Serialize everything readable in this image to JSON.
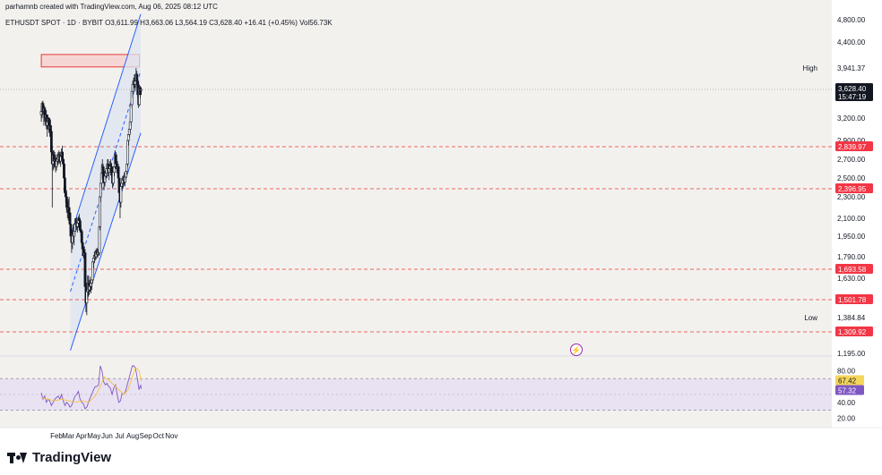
{
  "header": {
    "credit": "parhamnb created with TradingView.com, Aug 06, 2025 08:12 UTC",
    "symbol": "ETHUSDT SPOT · 1D · BYBIT",
    "open": "O3,611.99",
    "high": "H3,663.06",
    "low": "L3,564.19",
    "close": "C3,628.40",
    "change": "+16.41 (+0.45%)",
    "volume": "Vol56.73K"
  },
  "footer": {
    "brand": "TradingView"
  },
  "colors": {
    "background": "#f3f1ee",
    "channel_fill": "#dde4f0",
    "channel_line": "#2962ff",
    "resistance_zone": "#f5cccc",
    "resistance_border": "#e53935",
    "level_line": "#e53935",
    "label_red": "#f23645",
    "candle": "#131722",
    "rsi_line": "#7e57c2",
    "rsi_ma": "#f5c242",
    "rsi_label_yellow": "#f5d65b",
    "rsi_label_purple": "#7e57c2"
  },
  "chart_data": {
    "type": "candlestick",
    "symbol": "ETHUSDT",
    "timeframe": "1D",
    "x_ticks": [
      "Feb",
      "Mar",
      "Apr",
      "May",
      "Jun",
      "Jul",
      "Aug",
      "Sep",
      "Oct",
      "Nov"
    ],
    "price_axis_ticks": [
      "4,800.00",
      "4,400.00",
      "3,200.00",
      "2,900.00",
      "2,700.00",
      "2,500.00",
      "2,300.00",
      "2,100.00",
      "1,950.00",
      "1,790.00",
      "1,630.00",
      "1,384.84",
      "1,195.00"
    ],
    "price_ylim": [
      1150,
      5000
    ],
    "current_price": {
      "value": 3628.4,
      "label": "3,628.40",
      "countdown": "15:47:19"
    },
    "high": {
      "value": 3941.37,
      "label": "3,941.37",
      "tag": "High"
    },
    "low": {
      "value": 1384.84,
      "label": "1,384.84",
      "tag": "Low"
    },
    "levels": [
      {
        "value": 2839.97,
        "label": "2,839.97"
      },
      {
        "value": 2396.95,
        "label": "2,396.95"
      },
      {
        "value": 1693.58,
        "label": "1,693.58"
      },
      {
        "value": 1501.78,
        "label": "1,501.78"
      },
      {
        "value": 1309.92,
        "label": "1,309.92"
      }
    ],
    "resistance_zone": {
      "low": 3960,
      "high": 4180,
      "from_day": -36,
      "to_day": 197
    },
    "channel": {
      "from_day": 33,
      "to_day": 200,
      "upper": [
        1950,
        4900
      ],
      "middle": [
        1550,
        3900
      ],
      "lower": [
        1210,
        3000
      ]
    },
    "candles": [
      [
        -36,
        3250,
        3370,
        3150,
        3300
      ],
      [
        -34,
        3300,
        3450,
        3200,
        3420
      ],
      [
        -32,
        3420,
        3460,
        3250,
        3300
      ],
      [
        -30,
        3300,
        3400,
        3100,
        3350
      ],
      [
        -28,
        3350,
        3380,
        3150,
        3200
      ],
      [
        -26,
        3200,
        3300,
        3100,
        3250
      ],
      [
        -24,
        3250,
        3320,
        3050,
        3100
      ],
      [
        -22,
        3100,
        3200,
        2950,
        3150
      ],
      [
        -20,
        3150,
        3250,
        3050,
        3200
      ],
      [
        -18,
        3200,
        3210,
        3000,
        3050
      ],
      [
        -16,
        3050,
        3150,
        2950,
        3100
      ],
      [
        -14,
        3100,
        3180,
        2980,
        3020
      ],
      [
        -12,
        3020,
        3050,
        2700,
        2780
      ],
      [
        -10,
        2780,
        2850,
        2200,
        2650
      ],
      [
        -8,
        2650,
        2800,
        2580,
        2750
      ],
      [
        -6,
        2750,
        2800,
        2600,
        2680
      ],
      [
        -4,
        2680,
        2780,
        2620,
        2700
      ],
      [
        -2,
        2700,
        2750,
        2560,
        2620
      ],
      [
        0,
        2620,
        2720,
        2580,
        2680
      ],
      [
        2,
        2680,
        2760,
        2620,
        2700
      ],
      [
        4,
        2700,
        2780,
        2640,
        2720
      ],
      [
        6,
        2720,
        2800,
        2660,
        2750
      ],
      [
        8,
        2750,
        2780,
        2650,
        2680
      ],
      [
        10,
        2680,
        2760,
        2620,
        2730
      ],
      [
        12,
        2730,
        2820,
        2680,
        2780
      ],
      [
        14,
        2780,
        2850,
        2680,
        2700
      ],
      [
        16,
        2700,
        2780,
        2600,
        2650
      ],
      [
        18,
        2650,
        2700,
        2450,
        2500
      ],
      [
        20,
        2500,
        2550,
        2300,
        2350
      ],
      [
        22,
        2350,
        2420,
        2200,
        2300
      ],
      [
        24,
        2300,
        2380,
        2150,
        2250
      ],
      [
        26,
        2250,
        2300,
        2100,
        2180
      ],
      [
        28,
        2180,
        2280,
        2080,
        2200
      ],
      [
        30,
        2200,
        2300,
        2100,
        2150
      ],
      [
        32,
        2150,
        2200,
        2000,
        2050
      ],
      [
        34,
        2050,
        2100,
        1920,
        1950
      ],
      [
        36,
        1950,
        2000,
        1820,
        1900
      ],
      [
        38,
        1900,
        2000,
        1850,
        1970
      ],
      [
        40,
        1970,
        2050,
        1900,
        1950
      ],
      [
        42,
        1950,
        2020,
        1880,
        1990
      ],
      [
        44,
        1990,
        2100,
        1960,
        2050
      ],
      [
        46,
        2050,
        2100,
        1990,
        2070
      ],
      [
        48,
        2070,
        2110,
        2000,
        2030
      ],
      [
        50,
        2030,
        2090,
        1980,
        2060
      ],
      [
        52,
        2060,
        2120,
        2020,
        2100
      ],
      [
        54,
        2100,
        2140,
        2050,
        2080
      ],
      [
        56,
        2080,
        2100,
        1980,
        2000
      ],
      [
        58,
        2000,
        2050,
        1950,
        1990
      ],
      [
        60,
        1990,
        2010,
        1880,
        1900
      ],
      [
        62,
        1900,
        1950,
        1820,
        1850
      ],
      [
        64,
        1850,
        1900,
        1780,
        1800
      ],
      [
        66,
        1800,
        1870,
        1760,
        1820
      ],
      [
        68,
        1820,
        1850,
        1550,
        1580
      ],
      [
        70,
        1580,
        1700,
        1420,
        1480
      ],
      [
        72,
        1480,
        1600,
        1400,
        1550
      ],
      [
        74,
        1550,
        1650,
        1500,
        1600
      ],
      [
        76,
        1600,
        1650,
        1520,
        1560
      ],
      [
        78,
        1560,
        1620,
        1530,
        1590
      ],
      [
        80,
        1590,
        1640,
        1550,
        1580
      ],
      [
        82,
        1580,
        1620,
        1540,
        1600
      ],
      [
        84,
        1600,
        1650,
        1560,
        1620
      ],
      [
        86,
        1620,
        1780,
        1600,
        1750
      ],
      [
        88,
        1750,
        1800,
        1700,
        1780
      ],
      [
        90,
        1780,
        1830,
        1740,
        1800
      ],
      [
        92,
        1800,
        1840,
        1760,
        1790
      ],
      [
        94,
        1790,
        1850,
        1770,
        1830
      ],
      [
        96,
        1830,
        1860,
        1790,
        1810
      ],
      [
        98,
        1810,
        1850,
        1780,
        1840
      ],
      [
        100,
        1840,
        1870,
        1800,
        1820
      ],
      [
        102,
        1820,
        2050,
        1800,
        2030
      ],
      [
        103,
        2030,
        2350,
        2000,
        2300
      ],
      [
        105,
        2300,
        2500,
        2250,
        2450
      ],
      [
        107,
        2450,
        2650,
        2400,
        2550
      ],
      [
        109,
        2550,
        2700,
        2480,
        2620
      ],
      [
        111,
        2620,
        2650,
        2450,
        2500
      ],
      [
        113,
        2500,
        2560,
        2380,
        2460
      ],
      [
        115,
        2460,
        2580,
        2420,
        2520
      ],
      [
        117,
        2520,
        2600,
        2480,
        2550
      ],
      [
        119,
        2550,
        2640,
        2500,
        2600
      ],
      [
        121,
        2600,
        2700,
        2550,
        2650
      ],
      [
        123,
        2650,
        2700,
        2520,
        2560
      ],
      [
        125,
        2560,
        2620,
        2480,
        2600
      ],
      [
        127,
        2600,
        2680,
        2560,
        2640
      ],
      [
        129,
        2640,
        2700,
        2580,
        2620
      ],
      [
        131,
        2620,
        2660,
        2500,
        2530
      ],
      [
        133,
        2530,
        2580,
        2400,
        2450
      ],
      [
        135,
        2450,
        2600,
        2420,
        2560
      ],
      [
        137,
        2560,
        2650,
        2520,
        2620
      ],
      [
        139,
        2620,
        2800,
        2600,
        2750
      ],
      [
        141,
        2750,
        2780,
        2600,
        2650
      ],
      [
        143,
        2650,
        2700,
        2550,
        2600
      ],
      [
        145,
        2600,
        2680,
        2550,
        2620
      ],
      [
        147,
        2620,
        2650,
        2450,
        2500
      ],
      [
        149,
        2500,
        2520,
        2300,
        2350
      ],
      [
        151,
        2350,
        2400,
        2100,
        2250
      ],
      [
        153,
        2250,
        2450,
        2200,
        2420
      ],
      [
        155,
        2420,
        2500,
        2380,
        2450
      ],
      [
        157,
        2450,
        2520,
        2400,
        2480
      ],
      [
        159,
        2480,
        2530,
        2420,
        2500
      ],
      [
        161,
        2500,
        2560,
        2440,
        2460
      ],
      [
        163,
        2460,
        2540,
        2420,
        2510
      ],
      [
        165,
        2510,
        2600,
        2480,
        2570
      ],
      [
        167,
        2570,
        2700,
        2540,
        2650
      ],
      [
        169,
        2650,
        2950,
        2620,
        2900
      ],
      [
        171,
        2900,
        3050,
        2850,
        2980
      ],
      [
        173,
        2980,
        3100,
        2950,
        3050
      ],
      [
        175,
        3050,
        3200,
        3000,
        3150
      ],
      [
        177,
        3150,
        3450,
        3100,
        3400
      ],
      [
        179,
        3400,
        3650,
        3350,
        3600
      ],
      [
        181,
        3600,
        3750,
        3500,
        3700
      ],
      [
        183,
        3700,
        3800,
        3600,
        3750
      ],
      [
        185,
        3750,
        3850,
        3650,
        3700
      ],
      [
        187,
        3700,
        3800,
        3600,
        3750
      ],
      [
        189,
        3750,
        3941,
        3700,
        3850
      ],
      [
        191,
        3850,
        3900,
        3700,
        3750
      ],
      [
        193,
        3750,
        3800,
        3500,
        3550
      ],
      [
        195,
        3550,
        3600,
        3350,
        3400
      ],
      [
        197,
        3400,
        3700,
        3380,
        3650
      ],
      [
        199,
        3650,
        3680,
        3500,
        3550
      ],
      [
        201,
        3612,
        3663,
        3564,
        3628
      ]
    ],
    "rsi": {
      "axis_ticks": [
        "80.00",
        "40.00",
        "20.00"
      ],
      "ylim": [
        15,
        95
      ],
      "bands": [
        70,
        30
      ],
      "value_label": "57.32",
      "ma_label": "67.42",
      "values": [
        [
          -36,
          52
        ],
        [
          -32,
          44
        ],
        [
          -28,
          48
        ],
        [
          -24,
          40
        ],
        [
          -20,
          44
        ],
        [
          -16,
          42
        ],
        [
          -12,
          36
        ],
        [
          -8,
          40
        ],
        [
          -4,
          44
        ],
        [
          0,
          46
        ],
        [
          4,
          48
        ],
        [
          8,
          44
        ],
        [
          12,
          50
        ],
        [
          16,
          42
        ],
        [
          20,
          36
        ],
        [
          24,
          40
        ],
        [
          28,
          38
        ],
        [
          32,
          34
        ],
        [
          36,
          36
        ],
        [
          40,
          42
        ],
        [
          44,
          48
        ],
        [
          48,
          50
        ],
        [
          52,
          54
        ],
        [
          56,
          44
        ],
        [
          60,
          40
        ],
        [
          64,
          38
        ],
        [
          68,
          32
        ],
        [
          72,
          34
        ],
        [
          76,
          40
        ],
        [
          80,
          46
        ],
        [
          84,
          50
        ],
        [
          88,
          56
        ],
        [
          92,
          60
        ],
        [
          96,
          60
        ],
        [
          100,
          62
        ],
        [
          104,
          86
        ],
        [
          108,
          80
        ],
        [
          112,
          66
        ],
        [
          116,
          62
        ],
        [
          120,
          64
        ],
        [
          124,
          60
        ],
        [
          128,
          58
        ],
        [
          132,
          50
        ],
        [
          136,
          58
        ],
        [
          140,
          62
        ],
        [
          144,
          50
        ],
        [
          148,
          40
        ],
        [
          152,
          42
        ],
        [
          156,
          52
        ],
        [
          160,
          50
        ],
        [
          164,
          54
        ],
        [
          168,
          62
        ],
        [
          172,
          70
        ],
        [
          176,
          78
        ],
        [
          180,
          86
        ],
        [
          184,
          86
        ],
        [
          188,
          82
        ],
        [
          192,
          70
        ],
        [
          196,
          56
        ],
        [
          200,
          62
        ],
        [
          201,
          57
        ]
      ],
      "ma": [
        [
          -36,
          46
        ],
        [
          -20,
          44
        ],
        [
          -4,
          42
        ],
        [
          12,
          44
        ],
        [
          28,
          42
        ],
        [
          44,
          40
        ],
        [
          60,
          42
        ],
        [
          76,
          40
        ],
        [
          92,
          48
        ],
        [
          104,
          60
        ],
        [
          114,
          72
        ],
        [
          124,
          68
        ],
        [
          136,
          62
        ],
        [
          148,
          56
        ],
        [
          160,
          50
        ],
        [
          170,
          56
        ],
        [
          180,
          72
        ],
        [
          188,
          84
        ],
        [
          196,
          80
        ],
        [
          201,
          67
        ]
      ]
    }
  }
}
